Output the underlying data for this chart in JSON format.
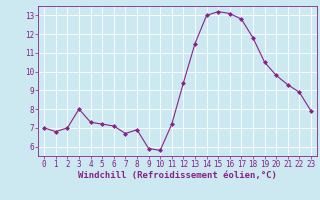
{
  "x": [
    0,
    1,
    2,
    3,
    4,
    5,
    6,
    7,
    8,
    9,
    10,
    11,
    12,
    13,
    14,
    15,
    16,
    17,
    18,
    19,
    20,
    21,
    22,
    23
  ],
  "y": [
    7.0,
    6.8,
    7.0,
    8.0,
    7.3,
    7.2,
    7.1,
    6.7,
    6.9,
    5.9,
    5.8,
    7.2,
    9.4,
    11.5,
    13.0,
    13.2,
    13.1,
    12.8,
    11.8,
    10.5,
    9.8,
    9.3,
    8.9,
    7.9
  ],
  "line_color": "#882288",
  "marker": "D",
  "marker_size": 2.0,
  "xlabel": "Windchill (Refroidissement éolien,°C)",
  "xlabel_fontsize": 6.5,
  "bg_color": "#cce8f0",
  "grid_color": "#b0ccd8",
  "ylim": [
    5.5,
    13.5
  ],
  "xlim": [
    -0.5,
    23.5
  ],
  "yticks": [
    6,
    7,
    8,
    9,
    10,
    11,
    12,
    13
  ],
  "xticks": [
    0,
    1,
    2,
    3,
    4,
    5,
    6,
    7,
    8,
    9,
    10,
    11,
    12,
    13,
    14,
    15,
    16,
    17,
    18,
    19,
    20,
    21,
    22,
    23
  ],
  "tick_fontsize": 5.5,
  "spine_color": "#882288"
}
